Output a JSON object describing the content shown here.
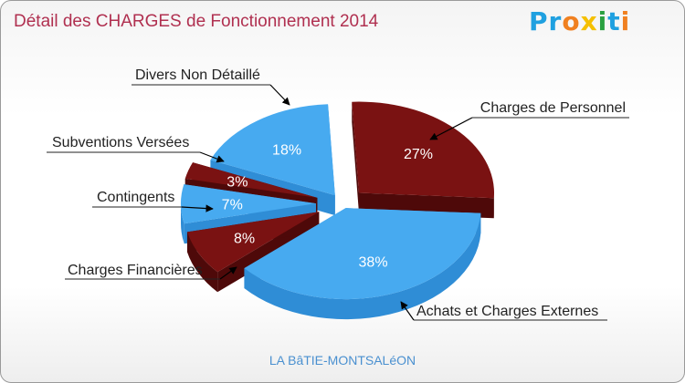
{
  "title": "Détail des CHARGES de Fonctionnement 2014",
  "logo": "Proxiti",
  "subtitle": "LA BâTIE-MONTSALéON",
  "colors": {
    "dark_red": "#7a1212",
    "dark_red_side": "#4e0909",
    "blue": "#47aaf0",
    "blue_side": "#2f8dd6",
    "title": "#b03050",
    "subtitle": "#4a90d0"
  },
  "chart_data": {
    "type": "pie",
    "title": "Détail des CHARGES de Fonctionnement 2014",
    "unit": "%",
    "slices": [
      {
        "label": "Charges de Personnel",
        "value": 27,
        "pct_label": "27%",
        "color": "dark_red"
      },
      {
        "label": "Achats et Charges Externes",
        "value": 38,
        "pct_label": "38%",
        "color": "blue"
      },
      {
        "label": "Charges Financières",
        "value": 8,
        "pct_label": "8%",
        "color": "dark_red"
      },
      {
        "label": "Contingents",
        "value": 7,
        "pct_label": "7%",
        "color": "blue"
      },
      {
        "label": "Subventions Versées",
        "value": 3,
        "pct_label": "3%",
        "color": "dark_red"
      },
      {
        "label": "Divers Non Détaillé",
        "value": 18,
        "pct_label": "18%",
        "color": "blue"
      }
    ]
  }
}
